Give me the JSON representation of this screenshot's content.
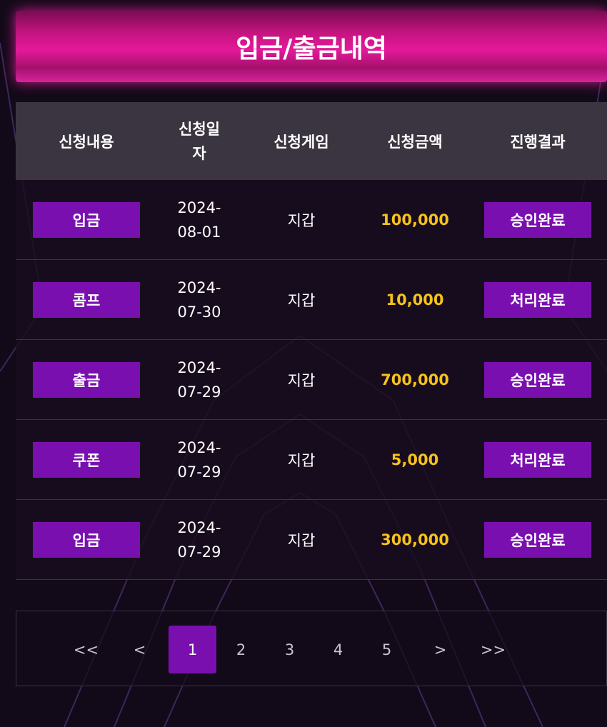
{
  "header": {
    "title": "입금/출금내역"
  },
  "table": {
    "columns": [
      "신청내용",
      "신청일자",
      "신청게임",
      "신청금액",
      "진행결과"
    ],
    "rows": [
      [
        "입금",
        "2024-08-01",
        "지갑",
        "100,000",
        "승인완료"
      ],
      [
        "콤프",
        "2024-07-30",
        "지갑",
        "10,000",
        "처리완료"
      ],
      [
        "출금",
        "2024-07-29",
        "지갑",
        "700,000",
        "승인완료"
      ],
      [
        "쿠폰",
        "2024-07-29",
        "지갑",
        "5,000",
        "처리완료"
      ],
      [
        "입금",
        "2024-07-29",
        "지갑",
        "300,000",
        "승인완료"
      ]
    ]
  },
  "pagination": {
    "items": [
      "<<",
      "<",
      "1",
      "2",
      "3",
      "4",
      "5",
      ">",
      ">>"
    ],
    "active": "1"
  }
}
